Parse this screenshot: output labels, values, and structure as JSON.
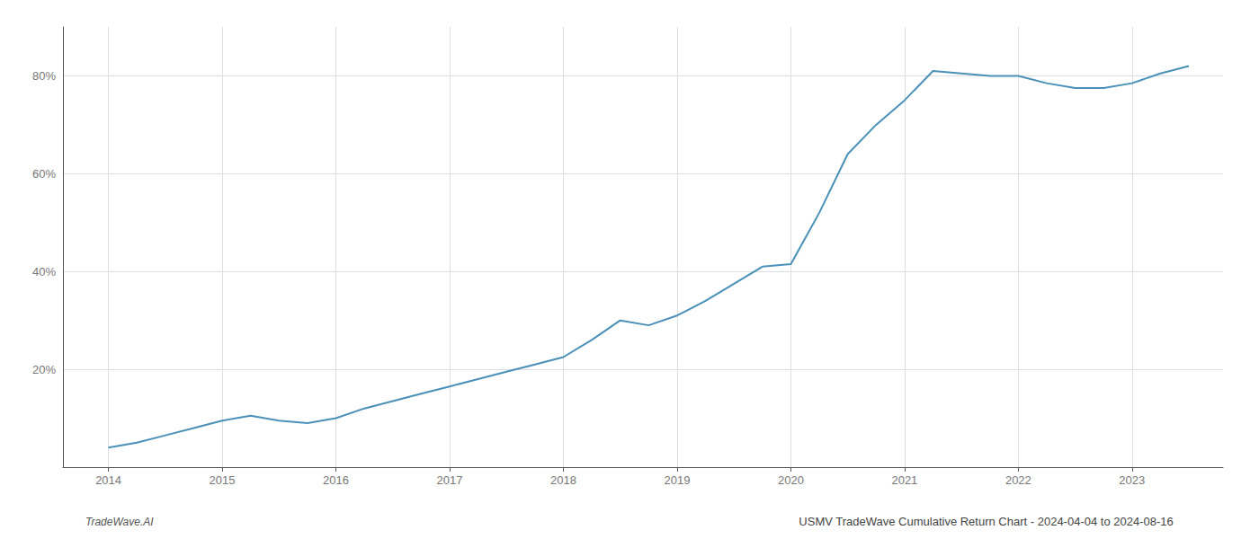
{
  "chart_data": {
    "type": "line",
    "title": "USMV TradeWave Cumulative Return Chart - 2024-04-04 to 2024-08-16",
    "annotations": [
      "TradeWave.AI"
    ],
    "x": [
      2014.0,
      2014.25,
      2014.5,
      2014.75,
      2015.0,
      2015.25,
      2015.5,
      2015.75,
      2016.0,
      2016.25,
      2016.5,
      2016.75,
      2017.0,
      2017.25,
      2017.5,
      2017.75,
      2018.0,
      2018.25,
      2018.5,
      2018.75,
      2019.0,
      2019.25,
      2019.5,
      2019.75,
      2020.0,
      2020.25,
      2020.5,
      2020.75,
      2021.0,
      2021.25,
      2021.5,
      2021.75,
      2022.0,
      2022.25,
      2022.5,
      2022.75,
      2023.0,
      2023.25,
      2023.5
    ],
    "values": [
      4.0,
      5.0,
      6.5,
      8.0,
      9.5,
      10.5,
      9.5,
      9.0,
      10.0,
      12.0,
      13.5,
      15.0,
      16.5,
      18.0,
      19.5,
      21.0,
      22.5,
      26.0,
      30.0,
      29.0,
      31.0,
      34.0,
      37.5,
      41.0,
      41.5,
      52.0,
      64.0,
      70.0,
      75.0,
      81.0,
      80.5,
      80.0,
      80.0,
      78.5,
      77.5,
      77.5,
      78.5,
      80.5,
      82.0
    ],
    "color": "#4a90b8",
    "xlim": [
      2013.6,
      2023.8
    ],
    "ylim": [
      0,
      90
    ],
    "xticks": [
      2014,
      2015,
      2016,
      2017,
      2018,
      2019,
      2020,
      2021,
      2022,
      2023
    ],
    "yticks": [
      {
        "value": 20,
        "label": "20%"
      },
      {
        "value": 40,
        "label": "40%"
      },
      {
        "value": 60,
        "label": "60%"
      },
      {
        "value": 80,
        "label": "80%"
      }
    ],
    "grid": true
  }
}
